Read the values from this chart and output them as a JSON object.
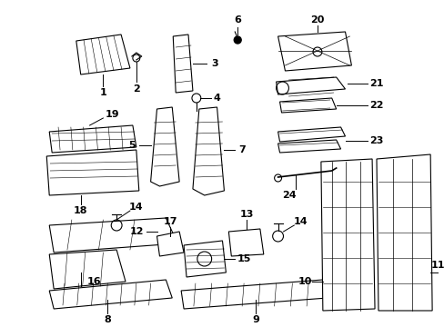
{
  "bg_color": "#ffffff",
  "fig_width": 4.89,
  "fig_height": 3.6,
  "dpi": 100,
  "label_fontsize": 8,
  "line_color": "#000000",
  "text_color": "#000000"
}
